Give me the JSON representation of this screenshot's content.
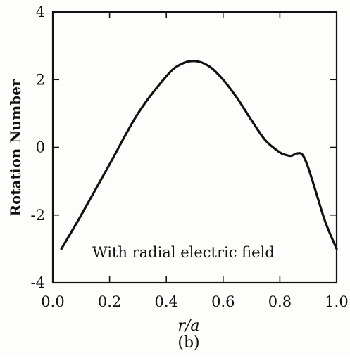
{
  "chart_data": {
    "type": "line",
    "title": "",
    "xlabel": "r/a",
    "ylabel": "Rotation Number",
    "panel_label": "(b)",
    "annotation": "With radial electric field",
    "xlim": [
      0.0,
      1.0
    ],
    "ylim": [
      -4,
      4
    ],
    "xticks": [
      0.0,
      0.2,
      0.4,
      0.6,
      0.8,
      1.0
    ],
    "xtick_labels": [
      "0.0",
      "0.2",
      "0.4",
      "0.6",
      "0.8",
      "1.0"
    ],
    "yticks": [
      -4,
      -2,
      0,
      2,
      4
    ],
    "ytick_labels": [
      "-4",
      "-2",
      "0",
      "2",
      "4"
    ],
    "grid": false,
    "legend": "none",
    "line_color": "#111111",
    "series": [
      {
        "x": [
          0.03,
          0.1,
          0.2,
          0.3,
          0.4,
          0.45,
          0.5,
          0.55,
          0.6,
          0.65,
          0.7,
          0.75,
          0.8,
          0.82,
          0.84,
          0.86,
          0.88,
          0.9,
          0.93,
          0.96,
          1.0
        ],
        "y": [
          -3.0,
          -2.0,
          -0.5,
          1.0,
          2.1,
          2.45,
          2.55,
          2.4,
          2.0,
          1.45,
          0.8,
          0.2,
          -0.15,
          -0.22,
          -0.25,
          -0.18,
          -0.22,
          -0.6,
          -1.4,
          -2.2,
          -3.0
        ]
      }
    ]
  }
}
